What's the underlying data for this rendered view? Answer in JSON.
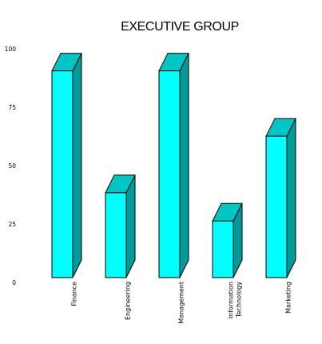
{
  "chart_data": {
    "type": "bar",
    "title": "EXECUTIVE GROUP",
    "xlabel": "",
    "ylabel": "",
    "categories": [
      "Finance",
      "Engineering",
      "Management",
      "Information Technology",
      "Marketing"
    ],
    "category_lines": [
      [
        "Finance"
      ],
      [
        "Engineering"
      ],
      [
        "Management"
      ],
      [
        "Information",
        "Technology"
      ],
      [
        "Marketing"
      ]
    ],
    "values": [
      95,
      39,
      95,
      26,
      65
    ],
    "ylim": [
      0,
      100
    ],
    "yticks": [
      0,
      25,
      50,
      75,
      100
    ],
    "style": "3d",
    "grid": false,
    "legend": "none",
    "colors": {
      "front": "#00ffff",
      "top": "#00c5c5",
      "side": "#009a9a",
      "outline": "#000000"
    }
  }
}
